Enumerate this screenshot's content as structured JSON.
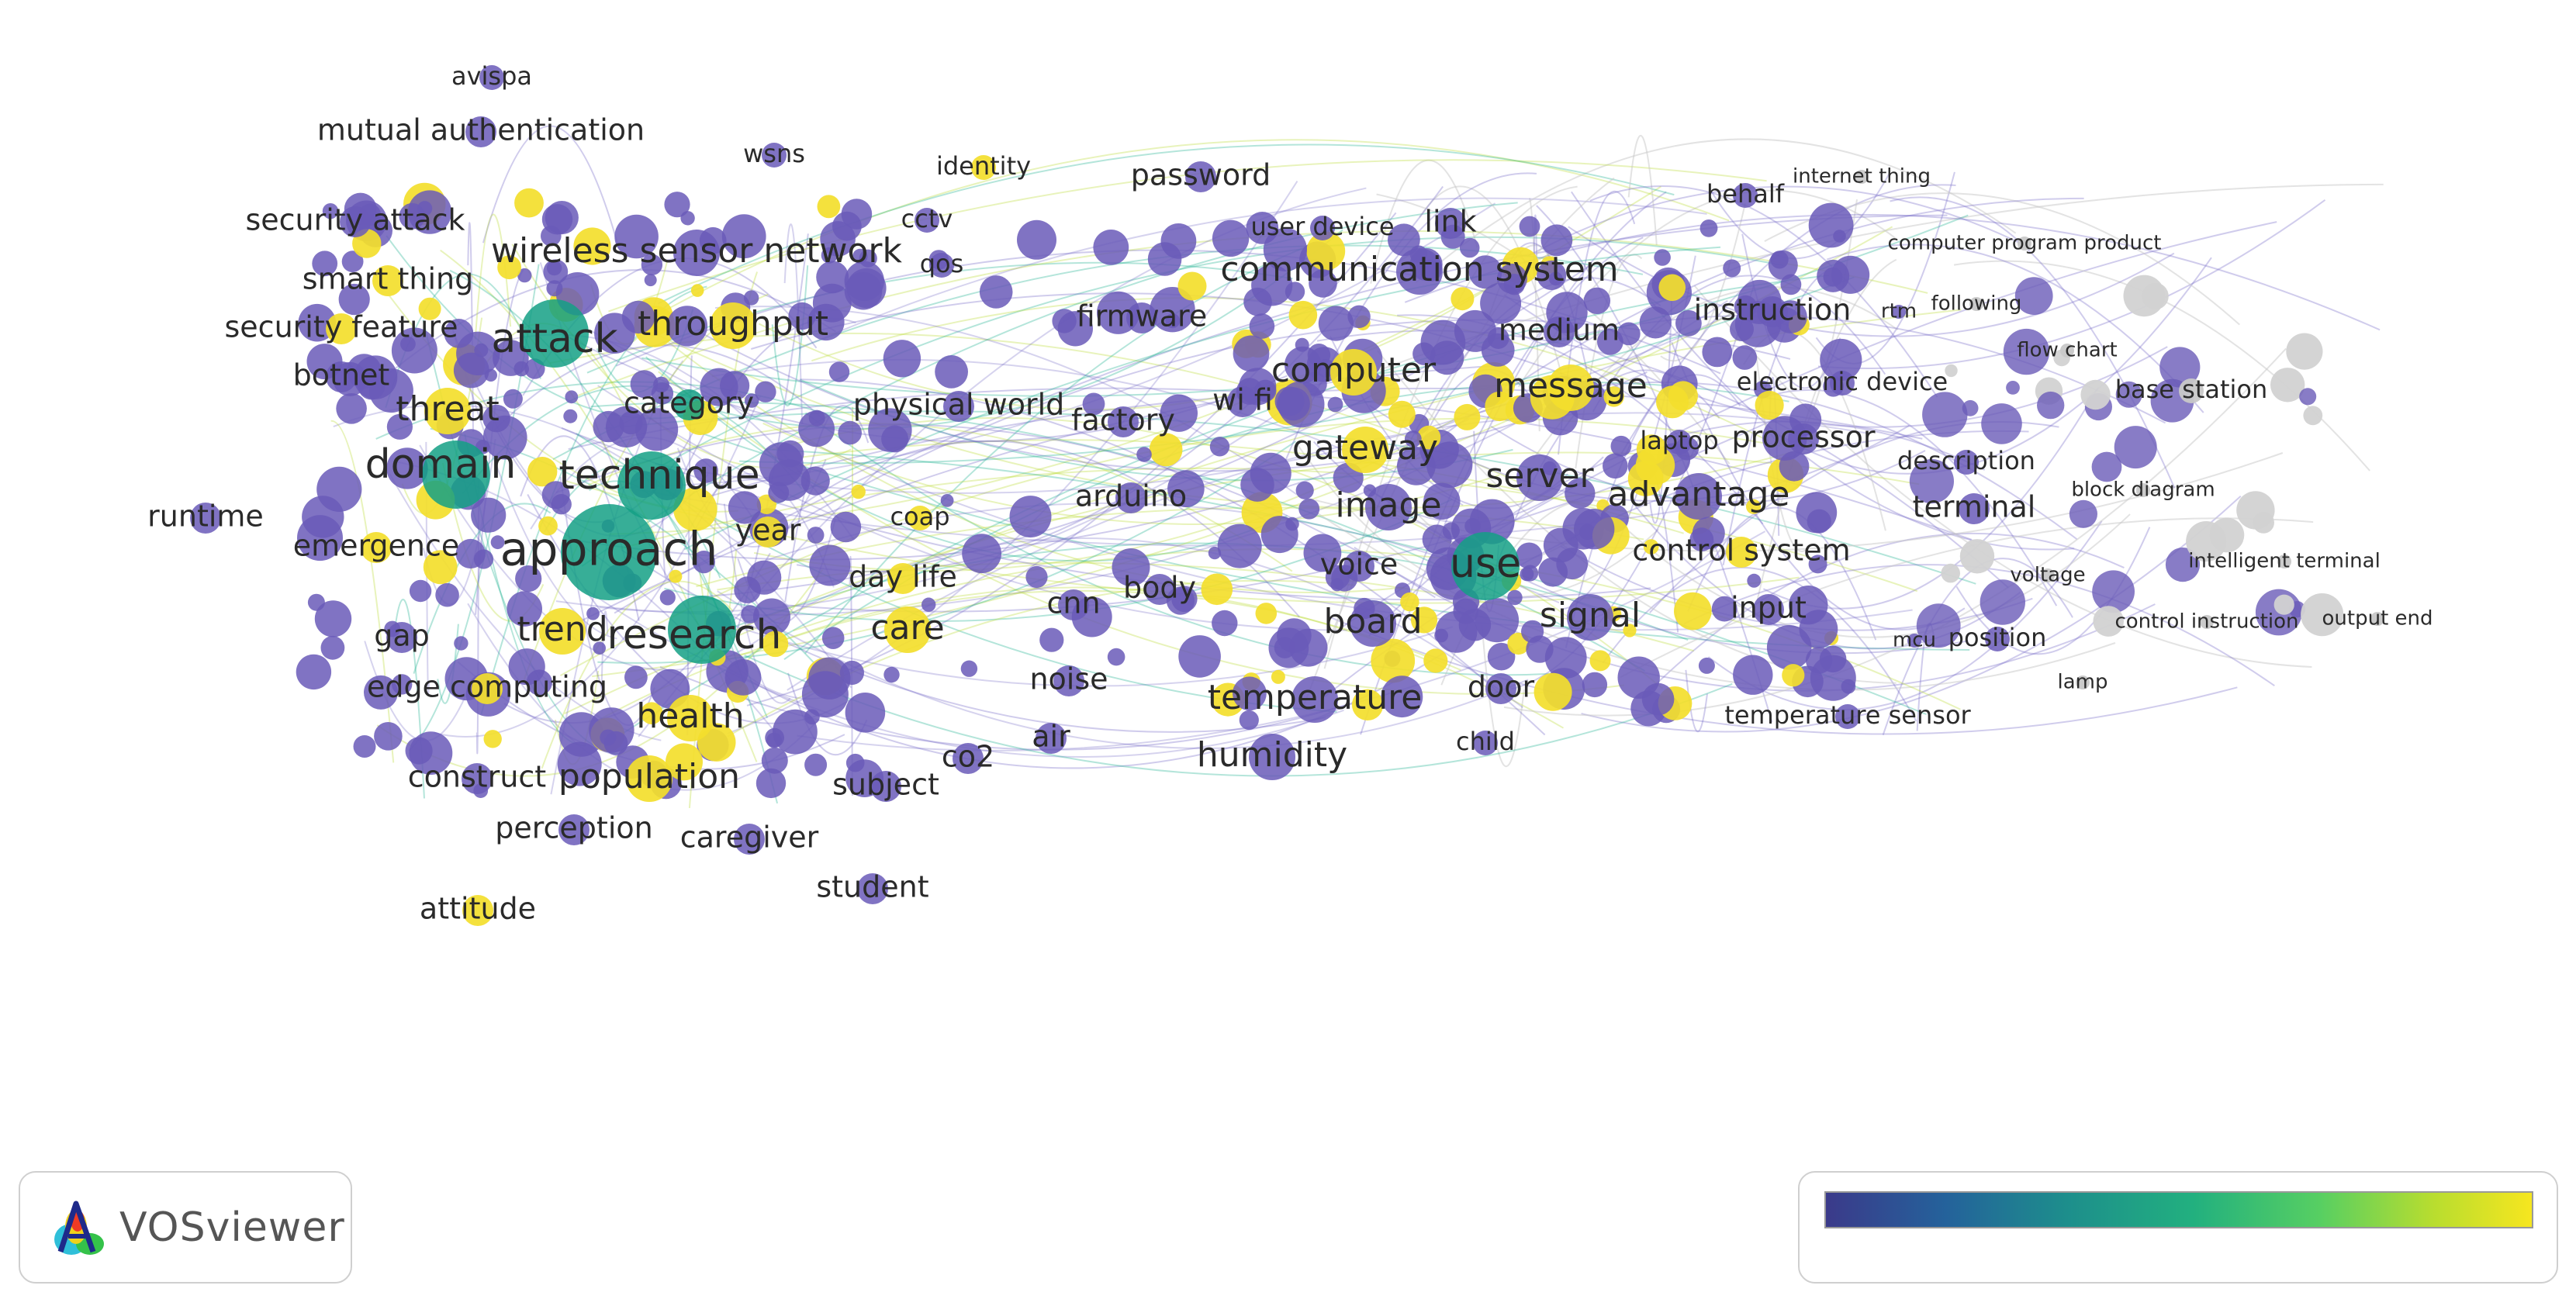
{
  "app": {
    "name": "VOSviewer"
  },
  "colors": {
    "viridis": [
      "#3b3a8a",
      "#24629b",
      "#1d8e8c",
      "#22b07f",
      "#57cf62",
      "#b8dd2f",
      "#f6e61f"
    ],
    "node_purple": "#6a5bb8",
    "node_teal": "#14a085",
    "node_yellow": "#f3de2c",
    "node_gray": "#c8c8c8"
  },
  "keywords": [
    {
      "label": "avispa",
      "c": "p",
      "s": "s"
    },
    {
      "label": "mutual authentication",
      "c": "p",
      "s": "m"
    },
    {
      "label": "wsns",
      "c": "p",
      "s": "s"
    },
    {
      "label": "identity",
      "c": "y",
      "s": "s"
    },
    {
      "label": "password",
      "c": "p",
      "s": "m"
    },
    {
      "label": "behalf",
      "c": "p",
      "s": "s"
    },
    {
      "label": "internet thing",
      "c": "g",
      "s": "xs"
    },
    {
      "label": "security attack",
      "c": "p",
      "s": "m"
    },
    {
      "label": "cctv",
      "c": "p",
      "s": "s"
    },
    {
      "label": "user device",
      "c": "p",
      "s": "s"
    },
    {
      "label": "link",
      "c": "p",
      "s": "m"
    },
    {
      "label": "computer program product",
      "c": "g",
      "s": "xs"
    },
    {
      "label": "smart thing",
      "c": "y",
      "s": "m"
    },
    {
      "label": "wireless sensor network",
      "c": "p",
      "s": "l"
    },
    {
      "label": "qos",
      "c": "p",
      "s": "s"
    },
    {
      "label": "communication system",
      "c": "p",
      "s": "l"
    },
    {
      "label": "security feature",
      "c": "y",
      "s": "m"
    },
    {
      "label": "attack",
      "c": "t",
      "s": "xl"
    },
    {
      "label": "throughput",
      "c": "y",
      "s": "l"
    },
    {
      "label": "firmware",
      "c": "p",
      "s": "m"
    },
    {
      "label": "instruction",
      "c": "p",
      "s": "m"
    },
    {
      "label": "rtm",
      "c": "p",
      "s": "xs"
    },
    {
      "label": "following",
      "c": "g",
      "s": "xs"
    },
    {
      "label": "medium",
      "c": "p",
      "s": "m"
    },
    {
      "label": "flow chart",
      "c": "g",
      "s": "xs"
    },
    {
      "label": "botnet",
      "c": "p",
      "s": "m"
    },
    {
      "label": "computer",
      "c": "y",
      "s": "l"
    },
    {
      "label": "electronic device",
      "c": "p",
      "s": "s"
    },
    {
      "label": "threat",
      "c": "y",
      "s": "l"
    },
    {
      "label": "category",
      "c": "t",
      "s": "m"
    },
    {
      "label": "physical world",
      "c": "p",
      "s": "m"
    },
    {
      "label": "wi fi",
      "c": "p",
      "s": "m"
    },
    {
      "label": "message",
      "c": "y",
      "s": "l"
    },
    {
      "label": "base station",
      "c": "g",
      "s": "s"
    },
    {
      "label": "factory",
      "c": "p",
      "s": "m"
    },
    {
      "label": "domain",
      "c": "t",
      "s": "xl"
    },
    {
      "label": "gateway",
      "c": "y",
      "s": "l"
    },
    {
      "label": "laptop",
      "c": "p",
      "s": "s"
    },
    {
      "label": "processor",
      "c": "p",
      "s": "m"
    },
    {
      "label": "technique",
      "c": "t",
      "s": "xl"
    },
    {
      "label": "description",
      "c": "p",
      "s": "s"
    },
    {
      "label": "server",
      "c": "p",
      "s": "l"
    },
    {
      "label": "advantage",
      "c": "p",
      "s": "l"
    },
    {
      "label": "block diagram",
      "c": "g",
      "s": "xs"
    },
    {
      "label": "arduino",
      "c": "p",
      "s": "m"
    },
    {
      "label": "runtime",
      "c": "p",
      "s": "m"
    },
    {
      "label": "image",
      "c": "p",
      "s": "l"
    },
    {
      "label": "terminal",
      "c": "p",
      "s": "m"
    },
    {
      "label": "coap",
      "c": "y",
      "s": "s"
    },
    {
      "label": "year",
      "c": "y",
      "s": "m"
    },
    {
      "label": "emergence",
      "c": "y",
      "s": "m"
    },
    {
      "label": "approach",
      "c": "t",
      "s": "xxl"
    },
    {
      "label": "control system",
      "c": "y",
      "s": "m"
    },
    {
      "label": "intelligent terminal",
      "c": "g",
      "s": "xs"
    },
    {
      "label": "use",
      "c": "t",
      "s": "xl"
    },
    {
      "label": "voice",
      "c": "p",
      "s": "m"
    },
    {
      "label": "voltage",
      "c": "g",
      "s": "xs"
    },
    {
      "label": "day life",
      "c": "y",
      "s": "m"
    },
    {
      "label": "body",
      "c": "p",
      "s": "m"
    },
    {
      "label": "cnn",
      "c": "p",
      "s": "m"
    },
    {
      "label": "board",
      "c": "p",
      "s": "l"
    },
    {
      "label": "signal",
      "c": "p",
      "s": "l"
    },
    {
      "label": "input",
      "c": "p",
      "s": "m"
    },
    {
      "label": "control instruction",
      "c": "g",
      "s": "xs"
    },
    {
      "label": "output end",
      "c": "g",
      "s": "xs"
    },
    {
      "label": "care",
      "c": "y",
      "s": "l"
    },
    {
      "label": "trend",
      "c": "y",
      "s": "l"
    },
    {
      "label": "research",
      "c": "t",
      "s": "xl"
    },
    {
      "label": "mcu",
      "c": "p",
      "s": "xs"
    },
    {
      "label": "position",
      "c": "p",
      "s": "s"
    },
    {
      "label": "gap",
      "c": "p",
      "s": "m"
    },
    {
      "label": "noise",
      "c": "p",
      "s": "m"
    },
    {
      "label": "door",
      "c": "p",
      "s": "m"
    },
    {
      "label": "lamp",
      "c": "g",
      "s": "xs"
    },
    {
      "label": "edge computing",
      "c": "y",
      "s": "m"
    },
    {
      "label": "temperature",
      "c": "p",
      "s": "l"
    },
    {
      "label": "temperature sensor",
      "c": "p",
      "s": "s"
    },
    {
      "label": "health",
      "c": "y",
      "s": "l"
    },
    {
      "label": "air",
      "c": "p",
      "s": "m"
    },
    {
      "label": "child",
      "c": "p",
      "s": "s"
    },
    {
      "label": "humidity",
      "c": "p",
      "s": "l"
    },
    {
      "label": "co2",
      "c": "p",
      "s": "m"
    },
    {
      "label": "construct",
      "c": "p",
      "s": "m"
    },
    {
      "label": "population",
      "c": "y",
      "s": "l"
    },
    {
      "label": "subject",
      "c": "p",
      "s": "m"
    },
    {
      "label": "perception",
      "c": "p",
      "s": "m"
    },
    {
      "label": "caregiver",
      "c": "p",
      "s": "m"
    },
    {
      "label": "student",
      "c": "p",
      "s": "m"
    },
    {
      "label": "attitude",
      "c": "y",
      "s": "m"
    }
  ]
}
